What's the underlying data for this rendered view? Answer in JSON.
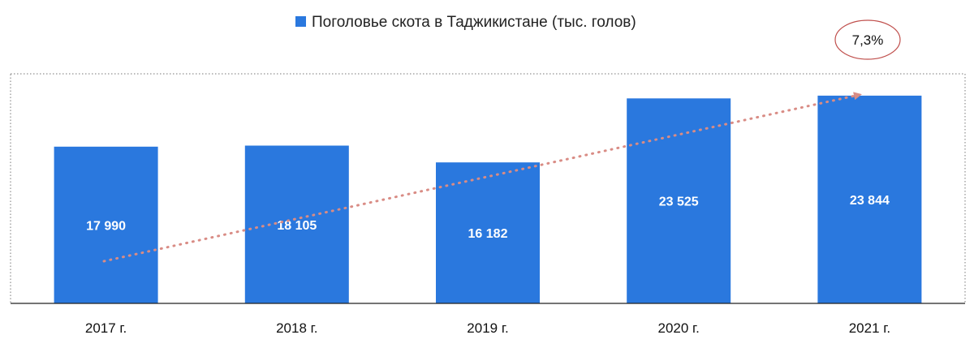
{
  "chart_data": {
    "type": "bar",
    "categories": [
      "2017 г.",
      "2018 г.",
      "2019 г.",
      "2020 г.",
      "2021 г."
    ],
    "series": [
      {
        "name": "Поголовье скота в Таджикистане (тыс. голов)",
        "values": [
          17990,
          18105,
          16182,
          23525,
          23844
        ]
      }
    ],
    "value_labels": [
      "17 990",
      "18 105",
      "16 182",
      "23 525",
      "23 844"
    ],
    "ylim": [
      0,
      27000
    ],
    "legend_position": "top-center",
    "grid": false,
    "annotation": {
      "text": "7,3%",
      "type": "trend-arrow"
    },
    "colors": {
      "bar": "#2A78DE",
      "trend": "#D98C85",
      "circle": "#C0504D",
      "frame": "#777777",
      "axis": "#222222"
    }
  }
}
